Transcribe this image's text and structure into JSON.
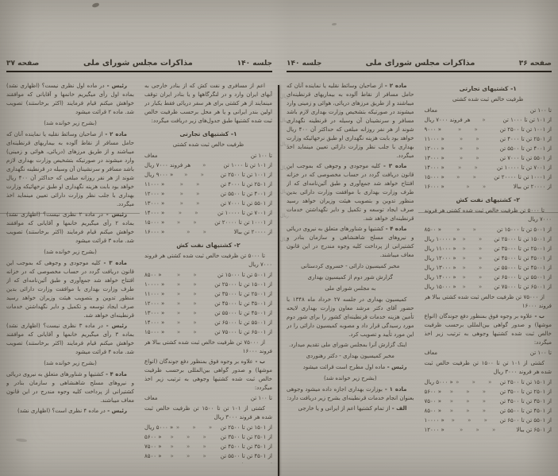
{
  "colors": {
    "paper": "#b8b4ac",
    "ink": "#3b362d",
    "rule": "#27221b"
  },
  "right_page": {
    "header": {
      "page_label": "صفحه ۳۶",
      "title": "مذاکرات مجلس شورای ملی",
      "session_label": "جلسه ۱۴۰"
    },
    "column_right": [
      {
        "t": "h",
        "text": "۱- کشتیهای تجارتی"
      },
      {
        "t": "c",
        "text": "ظرفیت خالص ثبت شده کشتی"
      },
      {
        "t": "row",
        "r": "تا ۱۰۰ تن",
        "d": "",
        "v": "معاف"
      },
      {
        "t": "row",
        "r": "از ۱۰۱ تن تا ۱۰۰۰ تن",
        "d": "«",
        "v": "هر فروند ۷۰۰۰ ریال"
      },
      {
        "t": "row",
        "r": "از ۱۰۰۱ تن تا ۲۵۰۰ تن",
        "d": "« «",
        "v": "« ۹۰۰۰"
      },
      {
        "t": "row",
        "r": "از ۲۵۰۱ تن تا ۴۰۰۰ تن",
        "d": "« «",
        "v": "« ۱۱۰۰۰"
      },
      {
        "t": "row",
        "r": "از ۴۰۰۱ تن تا ۵۵۰۰ تن",
        "d": "« «",
        "v": "« ۱۲۰۰۰"
      },
      {
        "t": "row",
        "r": "از ۵۵۰۱ تن تا ۷۰۰۰ تن",
        "d": "« «",
        "v": "« ۱۳۰۰۰"
      },
      {
        "t": "row",
        "r": "از ۷۰۰۱ تن تا ۱۰۰۰۰ تن",
        "d": "« «",
        "v": "« ۱۴۰۰۰"
      },
      {
        "t": "row",
        "r": "از ۱۰۰۰۱ تن تا ۲۰۰۰۰ تن",
        "d": "« «",
        "v": "« ۱۵۰۰۰"
      },
      {
        "t": "row",
        "r": "از ۲۰۰۰۰ تن ببالا",
        "d": "« «",
        "v": "« ۱۶۰۰۰"
      },
      {
        "t": "h",
        "text": "۲- کشتیهای نفت کش"
      },
      {
        "t": "p",
        "text": "تا ۵۰۰۰ تن ظرفیت خالص ثبت شده کشتی هر فروند ۷۰۰۰ ریال"
      },
      {
        "t": "row",
        "r": "از ۵۰۰۱ تن تا ۱۵۰۰۰ تن",
        "d": "« «",
        "v": "« ۸۵۰۰"
      },
      {
        "t": "row",
        "r": "از ۱۵۰۰۱ تن تا ۲۵۰۰۰ تن",
        "d": "« «",
        "v": "« ۱۰۰۰۰ ریال"
      },
      {
        "t": "row",
        "r": "از ۲۵۰۰۱ تن تا ۳۵۰۰۰ تن",
        "d": "« «",
        "v": "« ۱۱۰۰۰ ریال"
      },
      {
        "t": "row",
        "r": "از ۳۵۰۰۱ تن تا ۴۵۰۰۰ تن",
        "d": "« «",
        "v": "« ۱۲۰۰۰ ریال"
      },
      {
        "t": "row",
        "r": "از ۴۵۰۰۱ تن تا ۵۵۰۰۰ تن",
        "d": "« «",
        "v": "« ۱۳۰۰۰ ریال"
      },
      {
        "t": "row",
        "r": "از ۵۵۰۰۱ تن تا ۶۵۰۰۰ تن",
        "d": "« «",
        "v": "« ۱۴۰۰۰ ریال"
      },
      {
        "t": "row",
        "r": "از ۶۵۰۰۱ تن تا ۷۵۰۰۰ تن",
        "d": "« «",
        "v": "« ۱۵۰۰۰ ریال"
      },
      {
        "t": "p",
        "text": "از ۷۵۰۰۰ تن ظرفیت خالص ثبت شده کشتی ببالا هر فروند ۱۶۰۰۰"
      },
      {
        "t": "p",
        "lead": "ب -",
        "text": "علاوه بر وجوه فوق بمنظور دفع جوندگان (انواع موشها) و صدور گواهی بین‌المللی برحسب ظرفیت خالص ثبت شده کشتیها وجوهی به ترتیب زیر اخذ میگردد:"
      },
      {
        "t": "row",
        "r": "تا ۱۰۰ تن",
        "d": "",
        "v": "معاف"
      },
      {
        "t": "p",
        "text": "کشتی از ۱۰۱ تن تا ۱۵۰۰ تن ظرفیت خالص ثبت شده هر فروند ۳۰۰۰ ریال"
      },
      {
        "t": "row",
        "r": "از ۱۵۰۱ تن تا ۲۵۰۰ تن",
        "d": "« « «",
        "v": "« ۵۰۰۰ ریال"
      },
      {
        "t": "row",
        "r": "از ۲۵۰۱ تن تا ۳۵۰۰ تن",
        "d": "« « «",
        "v": "« ۵۶۰۰"
      },
      {
        "t": "row",
        "r": "از ۳۵۰۱ تن تا ۴۵۰۰ تن",
        "d": "« « «",
        "v": "« ۷۵۰۰"
      },
      {
        "t": "row",
        "r": "از ۴۵۰۱ تن تا ۵۵۰۰ تن",
        "d": "« « «",
        "v": "« ۸۵۰۰"
      },
      {
        "t": "row",
        "r": "از ۵۵۰۱ تن تا ۶۵۰۰ تن",
        "d": "« « «",
        "v": "« ۱۰۰۰۰"
      },
      {
        "t": "row",
        "r": "از ۶۵۰۱ تن ببالا",
        "d": "« « «",
        "v": "« ۱۲۰۰۰"
      }
    ],
    "column_left": [
      {
        "t": "p",
        "lead": "ماده ۲ -",
        "text": "از صاحبان وسائط نقلیه یا نماینده آنان که حامل مسافر از نقاط آلوده به بیماریهای قرنطینه‌ای میباشند و از طریق مرزهای دریائی، هوائی و زمینی وارد میشوند در صورتیکه بتشخیص وزارت بهداری لازم باشد مسافر و سرنشینان آن وسیله در قرنطینه نگهداری شوند از هر نفر روزانه مبلغی که حداکثر آن ۴۰۰ ریال خواهد بود بابت هزینه نگهداری او طبق نرخهائیکه وزارت بهداری با جلب نظر وزارت دارائی تعیین مینماید اخذ میگردد."
      },
      {
        "t": "p",
        "lead": "ماده ۳ -",
        "text": "کلیه موجودی و وجوهی که بموجب این قانون دریافت گردد در حساب مخصوصی که در خزانه افتتاح خواهد شد جمع‌آوری و طبق آئین‌نامه‌ای که از طرف وزارت بهداری با موافقت وزارت دارائی بدین منظور تدوین و بتصویب هیئت وزیران خواهد رسید صرف ایجاد توسعه و تکمیل و دایر نگهداشتن خدمات قرنطینه‌ای خواهد شد."
      },
      {
        "t": "p",
        "lead": "ماده ۴ -",
        "text": "کشتیها و شناورهای متعلق به نیروی دریائی و نیروهای مسلح شاهنشاهی و سازمان بنادر و کشتیرانی از پرداخت کلیه وجوه مندرج در این قانون معاف میباشند."
      },
      {
        "t": "c",
        "text": "مخبر کمیسیون دارائی - خسروی کردستانی"
      },
      {
        "t": "c",
        "text": "گزارش شور دوم از کمیسیون بهداری"
      },
      {
        "t": "c",
        "text": "به مجلس شورای ملی"
      },
      {
        "t": "p",
        "text": "کمیسیون بهداری در جلسه ۲۷ خرداد ماه ۱۳۴۸ با حضور آقای دکتر مرشد معاون وزارت بهداری لایحه تأمین هزینه خدمات قرنطینه‌ای کشور را برای شور دوم مورد رسیدگی قرار داد و مصوبه کمیسیون دارائی را در این مورد تأیید و تصویب کرد."
      },
      {
        "t": "p",
        "text": "اینک گزارش آنرا بمجلس شورای ملی تقدیم میدارد."
      },
      {
        "t": "c",
        "text": "مخبر کمیسیون بهداری - دکتر رهنوردی"
      },
      {
        "t": "p",
        "lead": "رئیس -",
        "text": "ماده اول مطرح است قرائت میشود"
      },
      {
        "t": "c",
        "text": "(بشرح زیر خوانده شد)"
      },
      {
        "t": "p",
        "lead": "ماده ۱ -",
        "text": "بوزارت بهداری اجازه داده میشود وجوهی بعنوان انجام خدمات قرنطینه‌ای بشرح زیر دریافت دارد:"
      },
      {
        "t": "p",
        "lead": "الف -",
        "text": "از تمام کشتیها اعم از ایرانی و یا خارجی"
      }
    ],
    "bleed_words": [
      "ریال",
      "ریال",
      "ریال",
      "ریال",
      "ریال",
      "ریال",
      "ریال"
    ]
  },
  "left_page": {
    "header": {
      "session_label": "جلسه ۱۴۰",
      "title": "مذاکرات مجلس شورای ملی",
      "page_label": "صفحه ۳۷"
    },
    "column_right": [
      {
        "t": "p",
        "text": "اعم از مسافری و نفت کش که از بنادر خارجی به آبهای ایران وارد و در لنگرگاهها و یا بنادر ایران توقف مینمایند از هر کشتی برای هر سفر دریائی فقط یکبار در اولین بندر ایرانی و یا هر محل برحسب ظرفیت خالص ثبت شده کشتیها طبق جدول‌های زیر دریافت میگردد:"
      },
      {
        "t": "h",
        "text": "۱- کشتیهای تجارتی"
      },
      {
        "t": "c",
        "text": "ظرفیت خالص ثبت شده کشتی"
      },
      {
        "t": "row",
        "r": "تا ۱۰۰ تن",
        "d": "",
        "v": "معاف"
      },
      {
        "t": "row",
        "r": "از ۱۰۱ تن تا ۱۰۰۰ تن",
        "d": "«",
        "v": "هر فروند ۷۰۰۰ ریال"
      },
      {
        "t": "row",
        "r": "از ۱۰۰۱ تن تا ۲۵۰۰ تن",
        "d": "« «",
        "v": "« ۹۰۰۰ ریال"
      },
      {
        "t": "row",
        "r": "از ۲۵۰۱ تن تا ۴۰۰۰ تن",
        "d": "« «",
        "v": "« ۱۱۰۰۰"
      },
      {
        "t": "row",
        "r": "از ۴۰۰۱ تن تا ۵۵۰۰ تن",
        "d": "« «",
        "v": "« ۱۲۰۰۰"
      },
      {
        "t": "row",
        "r": "از ۵۵۰۱ تن تا ۷۰۰۰ تن",
        "d": "« «",
        "v": "« ۱۳۰۰۰"
      },
      {
        "t": "row",
        "r": "از ۷۰۰۱ تن تا ۱۰۰۰۰ تن",
        "d": "« «",
        "v": "« ۱۴۰۰۰"
      },
      {
        "t": "row",
        "r": "از ۱۰۰۰۱ تن تا ۲۰۰۰۰ تن",
        "d": "« «",
        "v": "« ۱۵۰۰۰"
      },
      {
        "t": "row",
        "r": "از ۲۰۰۰۰ تن ببالا",
        "d": "« «",
        "v": "« ۱۶۰۰۰"
      },
      {
        "t": "h",
        "text": "۲- کشتیهای نفت کش"
      },
      {
        "t": "p",
        "text": "تا ۵۰۰۰ تن ظرفیت خالص ثبت شده کشتی هر فروند ۷۰۰۰ ریال"
      },
      {
        "t": "row",
        "r": "از ۵۰۰۱ تن تا ۱۵۰۰۰ تن",
        "d": "« «",
        "v": "« ۸۵۰۰"
      },
      {
        "t": "row",
        "r": "از ۱۵۰۰۱ تن تا ۲۵۰۰۰ تن",
        "d": "« «",
        "v": "« ۱۰۰۰۰"
      },
      {
        "t": "row",
        "r": "از ۲۵۰۰۱ تن تا ۳۵۰۰۰ تن",
        "d": "« «",
        "v": "« ۱۱۰۰۰"
      },
      {
        "t": "row",
        "r": "از ۳۵۰۰۱ تن تا ۴۵۰۰۰ تن",
        "d": "« «",
        "v": "« ۱۲۰۰۰"
      },
      {
        "t": "row",
        "r": "از ۴۵۰۰۱ تن تا ۵۵۰۰۰ تن",
        "d": "« «",
        "v": "« ۱۳۰۰۰"
      },
      {
        "t": "row",
        "r": "از ۵۵۰۰۱ تن تا ۶۵۰۰۰ تن",
        "d": "« «",
        "v": "« ۱۴۰۰۰"
      },
      {
        "t": "row",
        "r": "از ۶۵۰۰۱ تن تا ۷۵۰۰۰ تن",
        "d": "« «",
        "v": "« ۱۵۰۰۰"
      },
      {
        "t": "p",
        "text": "از ۷۵۰۰۰ تن ظرفیت خالص ثبت شده کشتی ببالا هر فروند ۱۶۰۰۰"
      },
      {
        "t": "p",
        "lead": "ب -",
        "text": "علاوه بر وجوه فوق بمنظور دفع جوندگان (انواع موشها) و صدور گواهی بین‌المللی برحسب ظرفیت خالص ثبت شده کشتیها وجوهی به ترتیب زیر اخذ میگردد:"
      },
      {
        "t": "row",
        "r": "تا ۱۰۰ تن",
        "d": "",
        "v": "معاف"
      },
      {
        "t": "p",
        "text": "کشتی از ۱۰۱ تن تا ۱۵۰۰ تن ظرفیت خالص ثبت شده هر فروند ۳۰۰۰ ریال"
      },
      {
        "t": "row",
        "r": "از ۱۵۰۱ تن تا ۲۵۰۰ تن",
        "d": "« « «",
        "v": "« ۵۰۰۰ ریال"
      },
      {
        "t": "row",
        "r": "از ۲۵۰۱ تن تا ۳۵۰۰ تن",
        "d": "« « «",
        "v": "« ۵۶۰۰"
      },
      {
        "t": "row",
        "r": "از ۳۵۰۱ تن تا ۴۵۰۰ تن",
        "d": "« « «",
        "v": "« ۷۵۰۰"
      },
      {
        "t": "row",
        "r": "از ۴۵۰۱ تن تا ۵۵۰۰ تن",
        "d": "« « «",
        "v": "« ۸۵۰۰"
      },
      {
        "t": "row",
        "r": "از ۵۵۰۱ تن تا ۶۵۰۰ تن",
        "d": "« « «",
        "v": "« ۱۰۰۰۰"
      },
      {
        "t": "row",
        "r": "از ۶۵۰۱ تن ببالا",
        "d": "« « «",
        "v": "« ۱۲۰۰۰"
      }
    ],
    "column_left": [
      {
        "t": "p",
        "lead": "رئیس -",
        "text": "در ماده اول نظری نیست؟ (اظهاری نشد) بماده اول رأی میگیریم خانمها و آقایانی که موافقند خواهش میکنم قیام فرمایند (اکثر برخاستند) تصویب شد. ماده ۲ قرائت میشود"
      },
      {
        "t": "c",
        "text": "(بشرح زیر خوانده شد)"
      },
      {
        "t": "p",
        "lead": "ماده ۲ -",
        "text": "از صاحبان وسائط نقلیه یا نماینده آنان که حامل مسافر از نقاط آلوده به بیماریهای قرنطینه‌ای میباشند و از طریق مرزهای (دریائی، هوائی و زمینی) وارد میشوند در صورتیکه بتشخیص وزارت بهداری لازم باشد مسافر و سرنشینان آن وسیله در قرنطینه نگهداری شوند از هر نفر روزانه مبلغی که حداکثر آن ۴۰۰ ریال خواهد بود بابت هزینه نگهداری او طبق نرخهائیکه وزارت بهداری با جلب نظر وزارت دارائی تعیین مینماید اخذ میگردد."
      },
      {
        "t": "p",
        "lead": "رئیس -",
        "text": "در ماده ۲ نظری نیست؟ (اظهاری نشد) بماده ۲ رأی میگیریم خانمها و آقایانی که موافقند خواهش میکنم قیام فرمایند (اکثر برخاستند) تصویب شد. ماده ۳ قرائت میشود"
      },
      {
        "t": "c",
        "text": "(بشرح زیر خوانده شد)"
      },
      {
        "t": "p",
        "lead": "ماده ۳ -",
        "text": "کلیه موجودی و وجوهی که بموجب این قانون دریافت گردد در حساب مخصوصی که در خزانه افتتاح خواهد شد جمع‌آوری و طبق آئین‌نامه‌ای که از طرف وزارت بهداری با موافقت وزارت دارائی بدین منظور تدوین و بتصویب هیئت وزیران خواهد رسید صرف ایجاد توسعه و تکمیل و دایر نگهداشتن خدمات قرنطینه‌ای خواهد شد."
      },
      {
        "t": "p",
        "lead": "رئیس -",
        "text": "در ماده ۳ نظری نیست؟ (اظهاری نشد) بماده ۳ رأی میگیریم خانمها و آقایانی که موافقند خواهش میکنم قیام فرمایند (اکثر برخاستند) تصویب شد. ماده ۴ قرائت میشود"
      },
      {
        "t": "c",
        "text": "(بشرح زیر خوانده شد)"
      },
      {
        "t": "p",
        "lead": "ماده ۴ -",
        "text": "کشتیها و شناورهای متعلق به نیروی دریائی و نیروهای مسلح شاهنشاهی و سازمان بنادر و کشتیرانی از پرداخت کلیه وجوه مندرج در این قانون معاف میباشند."
      },
      {
        "t": "p",
        "lead": "رئیس -",
        "text": "در ماده ۴ نظری است؟ (اظهاری نشد)"
      }
    ]
  }
}
